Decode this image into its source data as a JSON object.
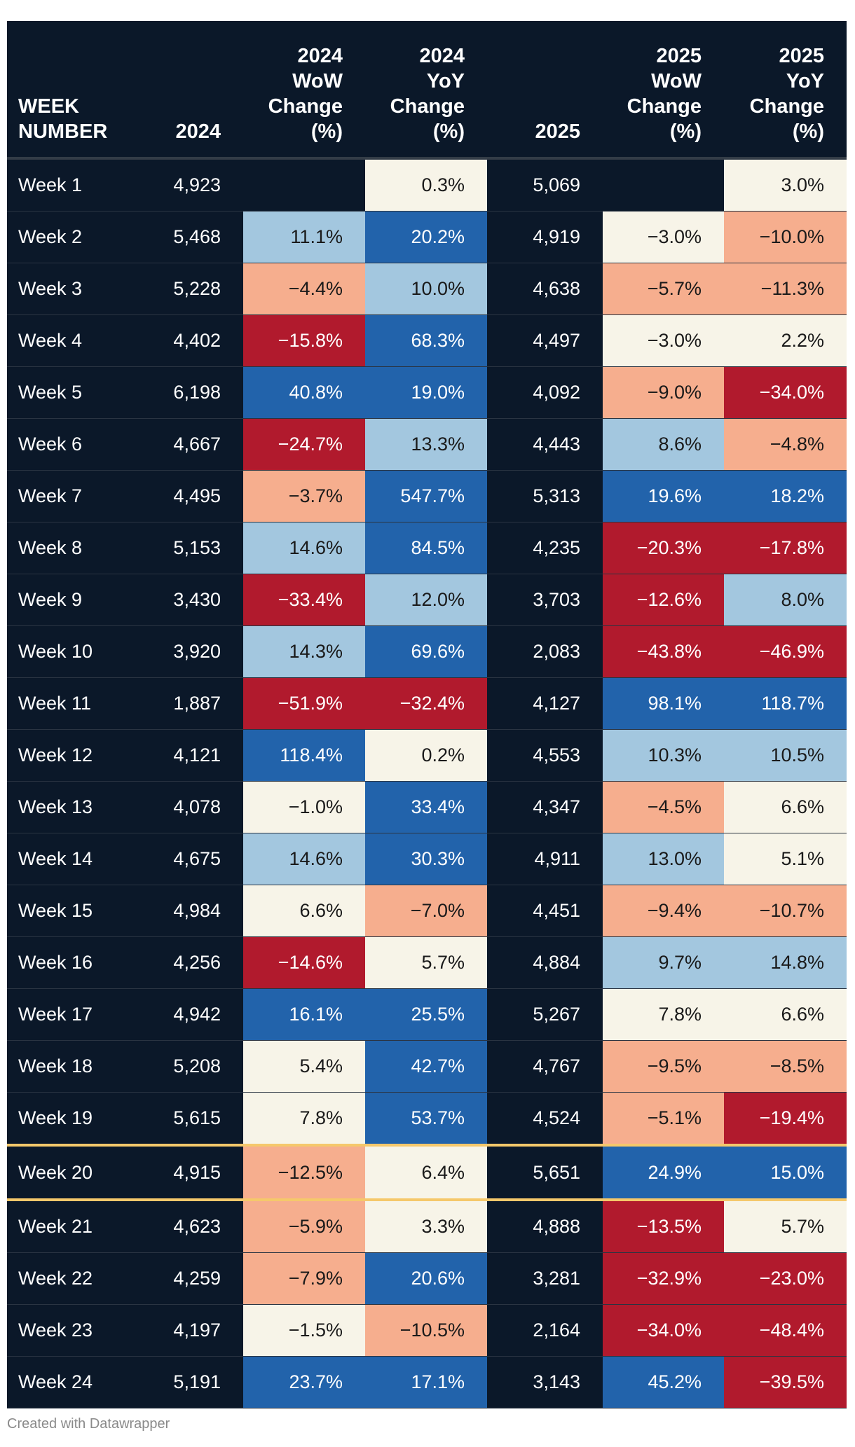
{
  "chart_data": {
    "type": "table",
    "columns": [
      "WEEK NUMBER",
      "2024",
      "2024 WoW Change (%)",
      "2024 YoY Change (%)",
      "2025",
      "2025 WoW Change (%)",
      "2025 YoY Change (%)"
    ],
    "header_lines": [
      [
        "WEEK",
        "NUMBER"
      ],
      [
        "2024"
      ],
      [
        "2024",
        "WoW",
        "Change",
        "(%)"
      ],
      [
        "2024",
        "YoY",
        "Change",
        "(%)"
      ],
      [
        "2025"
      ],
      [
        "2025",
        "WoW",
        "Change",
        "(%)"
      ],
      [
        "2025",
        "YoY",
        "Change",
        "(%)"
      ]
    ],
    "highlight_row": "Week 20",
    "rows": [
      [
        "Week 1",
        "4,923",
        "",
        "0.3%",
        "5,069",
        "",
        "3.0%"
      ],
      [
        "Week 2",
        "5,468",
        "11.1%",
        "20.2%",
        "4,919",
        "−3.0%",
        "−10.0%"
      ],
      [
        "Week 3",
        "5,228",
        "−4.4%",
        "10.0%",
        "4,638",
        "−5.7%",
        "−11.3%"
      ],
      [
        "Week 4",
        "4,402",
        "−15.8%",
        "68.3%",
        "4,497",
        "−3.0%",
        "2.2%"
      ],
      [
        "Week 5",
        "6,198",
        "40.8%",
        "19.0%",
        "4,092",
        "−9.0%",
        "−34.0%"
      ],
      [
        "Week 6",
        "4,667",
        "−24.7%",
        "13.3%",
        "4,443",
        "8.6%",
        "−4.8%"
      ],
      [
        "Week 7",
        "4,495",
        "−3.7%",
        "547.7%",
        "5,313",
        "19.6%",
        "18.2%"
      ],
      [
        "Week 8",
        "5,153",
        "14.6%",
        "84.5%",
        "4,235",
        "−20.3%",
        "−17.8%"
      ],
      [
        "Week 9",
        "3,430",
        "−33.4%",
        "12.0%",
        "3,703",
        "−12.6%",
        "8.0%"
      ],
      [
        "Week 10",
        "3,920",
        "14.3%",
        "69.6%",
        "2,083",
        "−43.8%",
        "−46.9%"
      ],
      [
        "Week 11",
        "1,887",
        "−51.9%",
        "−32.4%",
        "4,127",
        "98.1%",
        "118.7%"
      ],
      [
        "Week 12",
        "4,121",
        "118.4%",
        "0.2%",
        "4,553",
        "10.3%",
        "10.5%"
      ],
      [
        "Week 13",
        "4,078",
        "−1.0%",
        "33.4%",
        "4,347",
        "−4.5%",
        "6.6%"
      ],
      [
        "Week 14",
        "4,675",
        "14.6%",
        "30.3%",
        "4,911",
        "13.0%",
        "5.1%"
      ],
      [
        "Week 15",
        "4,984",
        "6.6%",
        "−7.0%",
        "4,451",
        "−9.4%",
        "−10.7%"
      ],
      [
        "Week 16",
        "4,256",
        "−14.6%",
        "5.7%",
        "4,884",
        "9.7%",
        "14.8%"
      ],
      [
        "Week 17",
        "4,942",
        "16.1%",
        "25.5%",
        "5,267",
        "7.8%",
        "6.6%"
      ],
      [
        "Week 18",
        "5,208",
        "5.4%",
        "42.7%",
        "4,767",
        "−9.5%",
        "−8.5%"
      ],
      [
        "Week 19",
        "5,615",
        "7.8%",
        "53.7%",
        "4,524",
        "−5.1%",
        "−19.4%"
      ],
      [
        "Week 20",
        "4,915",
        "−12.5%",
        "6.4%",
        "5,651",
        "24.9%",
        "15.0%"
      ],
      [
        "Week 21",
        "4,623",
        "−5.9%",
        "3.3%",
        "4,888",
        "−13.5%",
        "5.7%"
      ],
      [
        "Week 22",
        "4,259",
        "−7.9%",
        "20.6%",
        "3,281",
        "−32.9%",
        "−23.0%"
      ],
      [
        "Week 23",
        "4,197",
        "−1.5%",
        "−10.5%",
        "2,164",
        "−34.0%",
        "−48.4%"
      ],
      [
        "Week 24",
        "5,191",
        "23.7%",
        "17.1%",
        "3,143",
        "45.2%",
        "−39.5%"
      ]
    ]
  },
  "colors": {
    "background": "#0b1829",
    "strong_positive": "#2263ab",
    "mild_positive": "#a3c7df",
    "neutral": "#f7f4e8",
    "mild_negative": "#f6ae8e",
    "strong_negative": "#b11a2d",
    "highlight_line": "#f5c86b"
  },
  "footer": "Created with Datawrapper"
}
